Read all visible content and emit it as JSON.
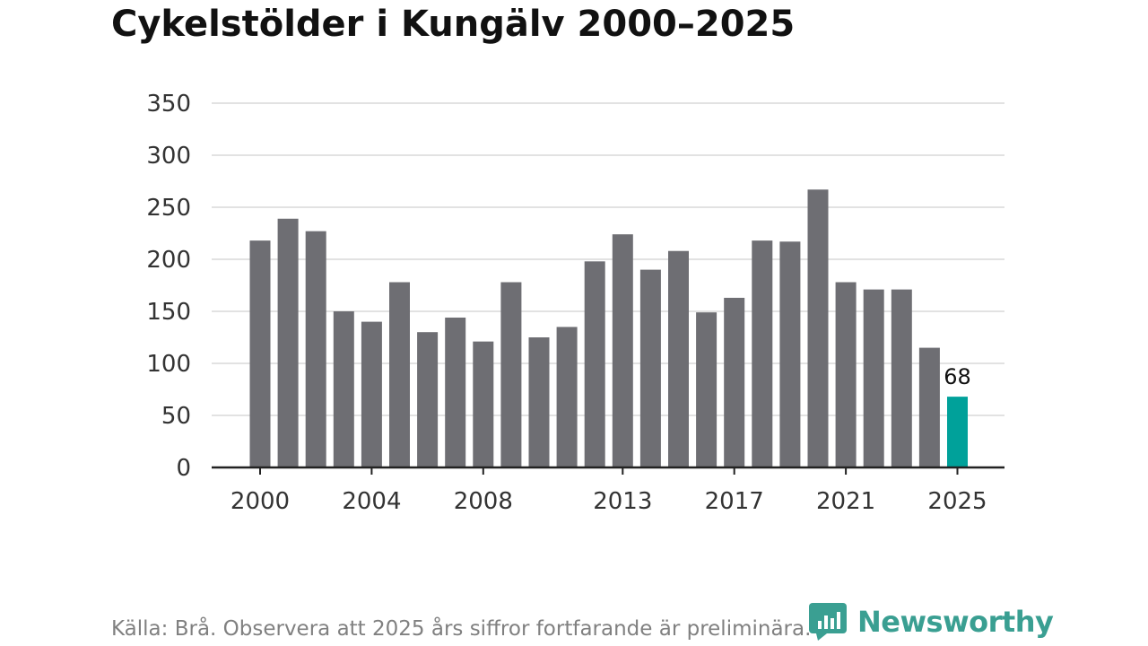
{
  "chart_data": {
    "type": "bar",
    "title": "Cykelstölder i Kungälv 2000–2025",
    "categories": [
      "2000",
      "2001",
      "2002",
      "2003",
      "2004",
      "2005",
      "2006",
      "2007",
      "2008",
      "2009",
      "2010",
      "2011",
      "2012",
      "2013",
      "2014",
      "2015",
      "2016",
      "2017",
      "2018",
      "2019",
      "2020",
      "2021",
      "2022",
      "2023",
      "2024",
      "2025"
    ],
    "values": [
      218,
      239,
      227,
      150,
      140,
      178,
      130,
      144,
      121,
      178,
      125,
      135,
      198,
      224,
      190,
      208,
      149,
      163,
      218,
      217,
      267,
      178,
      171,
      171,
      115,
      68
    ],
    "x_tick_labels": [
      "2000",
      "2004",
      "2008",
      "2013",
      "2017",
      "2021",
      "2025"
    ],
    "y_ticks": [
      0,
      50,
      100,
      150,
      200,
      250,
      300,
      350
    ],
    "ylim": [
      0,
      350
    ],
    "xlabel": "",
    "ylabel": "",
    "grid": true,
    "highlight": {
      "category": "2025",
      "label": "68"
    },
    "colors": {
      "bar": "#6e6e73",
      "highlight": "#00a19a",
      "grid": "#d9d9d9",
      "axis": "#222222"
    }
  },
  "footer": {
    "source": "Källa: Brå. Observera att 2025 års siffror fortfarande är preliminära.",
    "brand": "Newsworthy",
    "brand_color": "#3a9f92"
  }
}
